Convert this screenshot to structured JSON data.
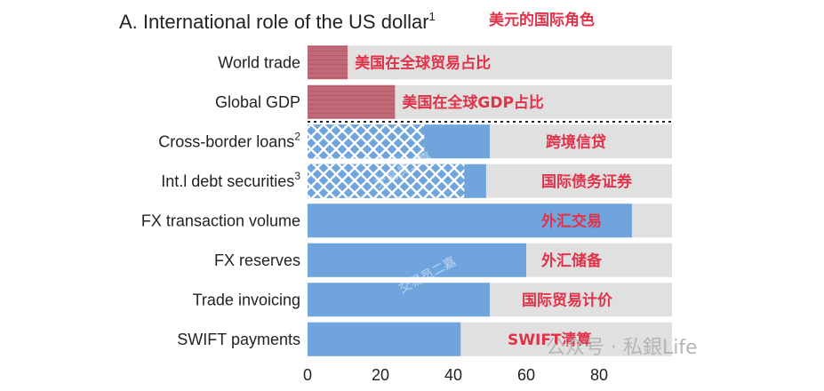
{
  "chart_data": {
    "type": "bar",
    "orientation": "horizontal",
    "title": "A. International role of the US dollar",
    "title_superscript": "1",
    "subtitle_zh": "美元的国际角色",
    "categories": [
      {
        "label": "World trade",
        "sup": ""
      },
      {
        "label": "Global GDP",
        "sup": ""
      },
      {
        "label": "Cross-border loans",
        "sup": "2"
      },
      {
        "label": "Int.l debt securities",
        "sup": "3"
      },
      {
        "label": "FX transaction volume",
        "sup": ""
      },
      {
        "label": "FX reserves",
        "sup": ""
      },
      {
        "label": "Trade invoicing",
        "sup": ""
      },
      {
        "label": "SWIFT payments",
        "sup": ""
      }
    ],
    "values": [
      11,
      24,
      50,
      49,
      89,
      60,
      50,
      42
    ],
    "hatched_portion": [
      null,
      null,
      32,
      43,
      null,
      null,
      null,
      null
    ],
    "annotations_zh": [
      "美国在全球贸易占比",
      "美国在全球GDP占比",
      "跨境信贷",
      "国际债务证券",
      "外汇交易",
      "外汇储备",
      "国际贸易计价",
      "SWIFT清算"
    ],
    "xlim": [
      0,
      100
    ],
    "xticks": [
      "0",
      "20",
      "40",
      "60",
      "80"
    ],
    "divider_after_index": 1,
    "colors": {
      "economy_bar": "#c06a78",
      "currency_bar": "#6fa4dd",
      "track": "#e0e0e0",
      "annotation": "#e0334a"
    }
  },
  "watermark": {
    "public_account": "公众号 · 私銀Life",
    "diagonal": "交易员二嘉"
  }
}
